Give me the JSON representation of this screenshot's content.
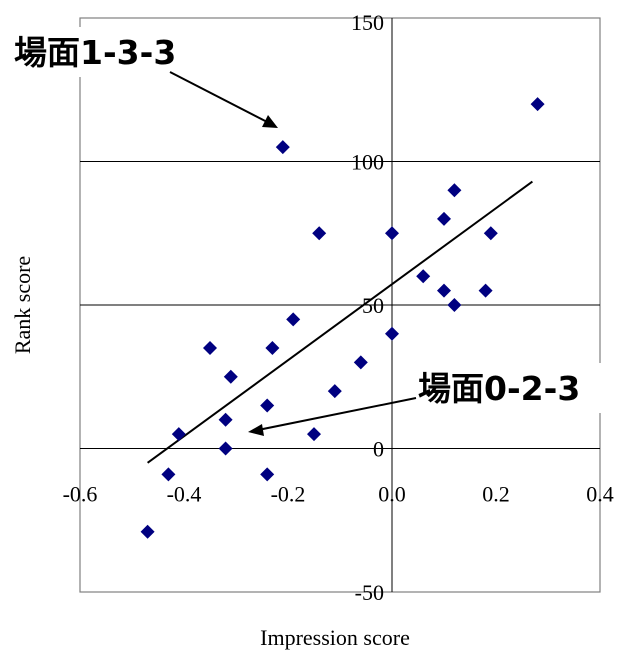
{
  "chart_data": {
    "type": "scatter",
    "title": "",
    "xlabel": "Impression score",
    "ylabel": "Rank score",
    "xlim": [
      -0.6,
      0.4
    ],
    "ylim": [
      -50,
      150
    ],
    "x_ticks": [
      "-0.6",
      "-0.4",
      "-0.2",
      "0.0",
      "0.2",
      "0.4"
    ],
    "y_ticks": [
      "-50",
      "0",
      "50",
      "100",
      "150"
    ],
    "grid": "horizontal at 0, 50, 100; vertical at x = 0",
    "marker": "diamond",
    "marker_color": "#000080",
    "series": [
      {
        "points": [
          [
            -0.47,
            -29
          ],
          [
            -0.43,
            -9
          ],
          [
            -0.41,
            5
          ],
          [
            -0.35,
            35
          ],
          [
            -0.32,
            0
          ],
          [
            -0.32,
            10
          ],
          [
            -0.31,
            25
          ],
          [
            -0.24,
            -9
          ],
          [
            -0.24,
            15
          ],
          [
            -0.23,
            35
          ],
          [
            -0.21,
            105
          ],
          [
            -0.19,
            45
          ],
          [
            -0.15,
            5
          ],
          [
            -0.14,
            75
          ],
          [
            -0.11,
            20
          ],
          [
            -0.06,
            30
          ],
          [
            0.0,
            40
          ],
          [
            0.0,
            75
          ],
          [
            0.06,
            60
          ],
          [
            0.1,
            55
          ],
          [
            0.1,
            80
          ],
          [
            0.12,
            90
          ],
          [
            0.12,
            50
          ],
          [
            0.18,
            55
          ],
          [
            0.19,
            75
          ],
          [
            0.28,
            120
          ]
        ]
      }
    ],
    "trendline": {
      "x": [
        -0.47,
        0.27
      ],
      "y": [
        -5,
        93
      ]
    },
    "annotations": [
      {
        "text": "場面1-3-3",
        "point": [
          -0.21,
          105
        ]
      },
      {
        "text": "場面0-2-3",
        "point": [
          -0.28,
          7
        ]
      }
    ]
  }
}
